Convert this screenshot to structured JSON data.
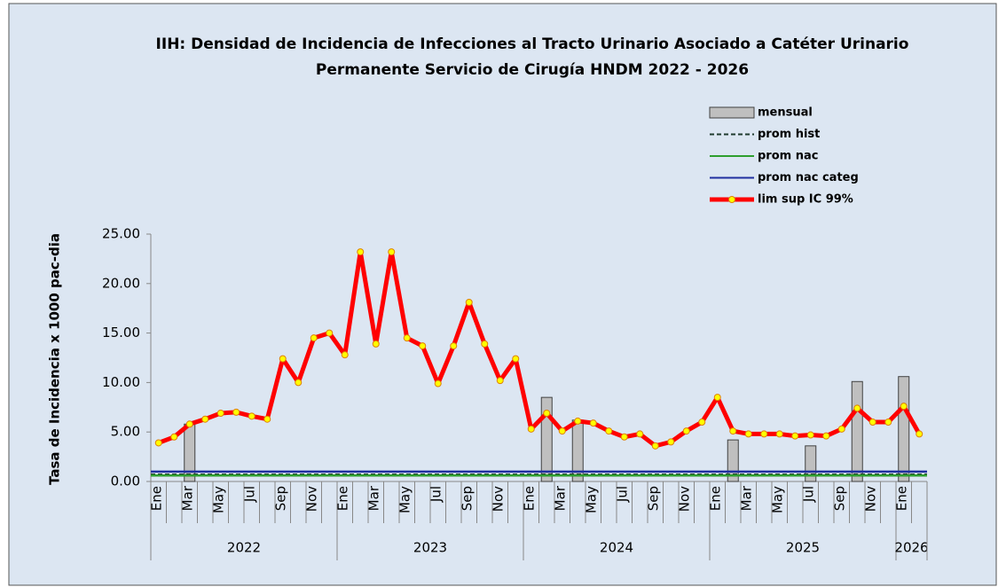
{
  "chart_data": {
    "type": "bar-line",
    "title": [
      "IIH: Densidad de Incidencia de Infecciones al Tracto Urinario Asociado a Catéter Urinario",
      "Permanente Servicio de Cirugía HNDM 2022 - 2026"
    ],
    "y_label": "Tasa de Incidencia x 1000 pac-dia",
    "groups": [
      {
        "name": "2022",
        "categories": [
          "Ene",
          null,
          "Mar",
          null,
          "May",
          null,
          "Jul",
          null,
          "Sep",
          null,
          "Nov",
          null
        ]
      },
      {
        "name": "2023",
        "categories": [
          "Ene",
          null,
          "Mar",
          null,
          "May",
          null,
          "Jul",
          null,
          "Sep",
          null,
          "Nov",
          null
        ]
      },
      {
        "name": "2024",
        "categories": [
          "Ene",
          null,
          "Mar",
          null,
          "May",
          null,
          "Jul",
          null,
          "Sep",
          null,
          "Nov",
          null
        ]
      },
      {
        "name": "2025",
        "categories": [
          "Ene",
          null,
          "Mar",
          null,
          "May",
          null,
          "Jul",
          null,
          "Sep",
          null,
          "Nov",
          null
        ]
      },
      {
        "name": "2026",
        "categories": [
          "Ene",
          null
        ]
      }
    ],
    "ylim": [
      0,
      25
    ],
    "yticks": [
      {
        "value": 0,
        "label": "0.00"
      },
      {
        "value": 5,
        "label": "5.00"
      },
      {
        "value": 10,
        "label": "10.00"
      },
      {
        "value": 15,
        "label": "15.00"
      },
      {
        "value": 20,
        "label": "20.00"
      },
      {
        "value": 25,
        "label": "25.00"
      }
    ],
    "series": [
      {
        "name": "mensual",
        "kind": "bar",
        "color": "#bfbfbf",
        "values": [
          null,
          null,
          5.8,
          null,
          null,
          null,
          null,
          null,
          null,
          null,
          null,
          null,
          null,
          null,
          null,
          null,
          null,
          null,
          null,
          null,
          null,
          null,
          null,
          null,
          null,
          8.5,
          null,
          6.2,
          null,
          null,
          null,
          null,
          null,
          null,
          null,
          null,
          null,
          4.2,
          null,
          null,
          null,
          null,
          3.6,
          null,
          null,
          10.1,
          null,
          null,
          10.6,
          null
        ]
      },
      {
        "name": "prom hist",
        "kind": "hline",
        "dash": true,
        "color": "#1f3b2f",
        "value": 0.7
      },
      {
        "name": "prom nac",
        "kind": "hline",
        "color": "#2e9e2e",
        "value": 0.6
      },
      {
        "name": "prom nac categ",
        "kind": "hline",
        "color": "#1f2fa0",
        "value": 1.0
      },
      {
        "name": "lim sup IC 99%",
        "kind": "line",
        "color": "#ff0000",
        "marker": "#ffff00",
        "values": [
          3.9,
          4.5,
          5.8,
          6.3,
          6.9,
          7.0,
          6.6,
          6.3,
          12.4,
          10.0,
          14.5,
          15.0,
          12.8,
          23.2,
          13.9,
          23.2,
          14.5,
          13.7,
          9.9,
          13.7,
          18.1,
          13.9,
          10.2,
          12.4,
          5.3,
          6.9,
          5.1,
          6.1,
          5.9,
          5.1,
          4.5,
          4.8,
          3.6,
          4.0,
          5.1,
          6.0,
          8.5,
          5.1,
          4.8,
          4.8,
          4.8,
          4.6,
          4.7,
          4.6,
          5.3,
          7.4,
          6.0,
          6.0,
          7.6,
          4.8
        ]
      }
    ]
  }
}
